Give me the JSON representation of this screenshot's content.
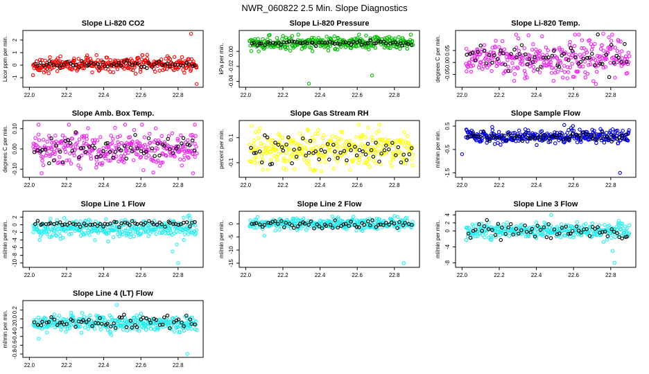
{
  "figure_title": "NWR_060822  2.5 Min. Slope Diagnostics",
  "chart_data": [
    {
      "type": "scatter",
      "title": "Slope Li-820 CO2",
      "ylabel": "Licor ppm per min.",
      "xlim": [
        21.98,
        22.92
      ],
      "ylim": [
        -1.6,
        2.6
      ],
      "x_ticks": [
        22.0,
        22.2,
        22.4,
        22.6,
        22.8
      ],
      "x_tick_labels": [
        "22.0",
        "22.2",
        "22.4",
        "22.6",
        "22.8"
      ],
      "y_ticks": [
        -1,
        0,
        1,
        2
      ],
      "y_tick_labels": [
        "-1",
        "0",
        "1",
        "2"
      ],
      "color": "#ff0000",
      "series_center": 0.05,
      "series_spread": 0.28,
      "black_center": 0.05,
      "black_spread": 0.15,
      "outliers": [
        {
          "x": 22.87,
          "y": 2.5
        },
        {
          "x": 22.9,
          "y": -1.5
        },
        {
          "x": 22.02,
          "y": -0.8
        }
      ]
    },
    {
      "type": "scatter",
      "title": "Slope Li-820 Pressure",
      "ylabel": "kPa per min.",
      "xlim": [
        21.98,
        22.92
      ],
      "ylim": [
        -0.045,
        0.025
      ],
      "x_ticks": [
        22.0,
        22.2,
        22.4,
        22.6,
        22.8
      ],
      "x_tick_labels": [
        "22.0",
        "22.2",
        "22.4",
        "22.6",
        "22.8"
      ],
      "y_ticks": [
        -0.04,
        -0.02,
        0.0
      ],
      "y_tick_labels": [
        "-0.04",
        "-0.02",
        "0.00"
      ],
      "color": "#00bb00",
      "series_center": 0.011,
      "series_spread": 0.004,
      "black_center": 0.011,
      "black_spread": 0.0015,
      "outliers": [
        {
          "x": 22.34,
          "y": -0.043
        },
        {
          "x": 22.68,
          "y": -0.032
        },
        {
          "x": 22.07,
          "y": 0.0
        }
      ]
    },
    {
      "type": "scatter",
      "title": "Slope Li-820 Temp.",
      "ylabel": "degrees C per min.",
      "xlim": [
        21.98,
        22.92
      ],
      "ylim": [
        -0.095,
        0.125
      ],
      "x_ticks": [
        22.0,
        22.2,
        22.4,
        22.6,
        22.8
      ],
      "x_tick_labels": [
        "22.0",
        "22.2",
        "22.4",
        "22.6",
        "22.8"
      ],
      "y_ticks": [
        -0.05,
        0.0,
        0.05
      ],
      "y_tick_labels": [
        "-0.05",
        "0.00",
        "0.05"
      ],
      "color": "#ee22ee",
      "series_center": 0.02,
      "series_spread": 0.038,
      "black_center": 0.02,
      "black_spread": 0.028,
      "outliers": [
        {
          "x": 22.76,
          "y": 0.12
        },
        {
          "x": 22.72,
          "y": -0.09
        }
      ]
    },
    {
      "type": "scatter",
      "title": "Slope Amb. Box Temp.",
      "ylabel": "degrees C per min.",
      "xlim": [
        21.98,
        22.92
      ],
      "ylim": [
        -0.13,
        0.13
      ],
      "x_ticks": [
        22.0,
        22.2,
        22.4,
        22.6,
        22.8
      ],
      "x_tick_labels": [
        "22.0",
        "22.2",
        "22.4",
        "22.6",
        "22.8"
      ],
      "y_ticks": [
        -0.1,
        0.0,
        0.1
      ],
      "y_tick_labels": [
        "-0.10",
        "0.00",
        "0.10"
      ],
      "color": "#ee22ee",
      "series_center": 0.0,
      "series_spread": 0.045,
      "black_center": 0.0,
      "black_spread": 0.04,
      "outliers": [
        {
          "x": 22.89,
          "y": 0.12
        },
        {
          "x": 22.88,
          "y": -0.12
        }
      ]
    },
    {
      "type": "scatter",
      "title": "Slope Gas Stream RH",
      "ylabel": "percent per min.",
      "xlim": [
        21.98,
        22.92
      ],
      "ylim": [
        -0.2,
        0.22
      ],
      "x_ticks": [
        22.0,
        22.2,
        22.4,
        22.6,
        22.8
      ],
      "x_tick_labels": [
        "22.0",
        "22.2",
        "22.4",
        "22.6",
        "22.8"
      ],
      "y_ticks": [
        -0.1,
        0.1
      ],
      "y_tick_labels": [
        "-0.1",
        "0.1"
      ],
      "color": "#ffff00",
      "series_center": 0.0,
      "series_spread": 0.07,
      "black_center": 0.0,
      "black_spread": 0.06,
      "outliers": [
        {
          "x": 22.66,
          "y": 0.18
        }
      ]
    },
    {
      "type": "scatter",
      "title": "Slope Sample Flow",
      "ylabel": "ml/min per min.",
      "xlim": [
        21.98,
        22.92
      ],
      "ylim": [
        -1.6,
        0.65
      ],
      "x_ticks": [
        22.0,
        22.2,
        22.4,
        22.6,
        22.8
      ],
      "x_tick_labels": [
        "22.0",
        "22.2",
        "22.4",
        "22.6",
        "22.8"
      ],
      "y_ticks": [
        -1.5,
        -0.5,
        0.5
      ],
      "y_tick_labels": [
        "-1.5",
        "-0.5",
        "0.5"
      ],
      "color": "#0000dd",
      "series_center": 0.05,
      "series_spread": 0.14,
      "black_center": 0.05,
      "black_spread": 0.08,
      "outliers": [
        {
          "x": 22.85,
          "y": -1.5
        },
        {
          "x": 22.0,
          "y": -0.7
        },
        {
          "x": 22.55,
          "y": 0.55
        }
      ]
    },
    {
      "type": "scatter",
      "title": "Slope Line 1 Flow",
      "ylabel": "ml/min per min.",
      "xlim": [
        21.98,
        22.92
      ],
      "ylim": [
        -10.6,
        3.0
      ],
      "x_ticks": [
        22.0,
        22.2,
        22.4,
        22.6,
        22.8
      ],
      "x_tick_labels": [
        "22.0",
        "22.2",
        "22.4",
        "22.6",
        "22.8"
      ],
      "y_ticks": [
        -10,
        -8,
        -6,
        -4,
        -2,
        0,
        2
      ],
      "y_tick_labels": [
        "-10",
        "-8",
        "-6",
        "-4",
        "-2",
        "0",
        "2"
      ],
      "color": "#22eeee",
      "series_center": -1.0,
      "series_spread": 1.2,
      "black_center": 0.2,
      "black_spread": 0.35,
      "outliers": [
        {
          "x": 22.8,
          "y": -10.0
        },
        {
          "x": 22.77,
          "y": -7.0
        },
        {
          "x": 22.86,
          "y": 2.5
        }
      ]
    },
    {
      "type": "scatter",
      "title": "Slope Line 2 Flow",
      "ylabel": "ml/min per min.",
      "xlim": [
        21.98,
        22.92
      ],
      "ylim": [
        -15.8,
        4.0
      ],
      "x_ticks": [
        22.0,
        22.2,
        22.4,
        22.6,
        22.8
      ],
      "x_tick_labels": [
        "22.0",
        "22.2",
        "22.4",
        "22.6",
        "22.8"
      ],
      "y_ticks": [
        -15,
        -10,
        -5,
        0
      ],
      "y_tick_labels": [
        "-15",
        "-10",
        "-5",
        "0"
      ],
      "color": "#22eeee",
      "series_center": 0.0,
      "series_spread": 1.0,
      "black_center": -0.3,
      "black_spread": 0.8,
      "outliers": [
        {
          "x": 22.85,
          "y": -15.0
        },
        {
          "x": 22.1,
          "y": -4.5
        },
        {
          "x": 22.8,
          "y": 3.0
        }
      ]
    },
    {
      "type": "scatter",
      "title": "Slope Line 3 Flow",
      "ylabel": "ml/min per min.",
      "xlim": [
        21.98,
        22.92
      ],
      "ylim": [
        -8.6,
        4.4
      ],
      "x_ticks": [
        22.0,
        22.2,
        22.4,
        22.6,
        22.8
      ],
      "x_tick_labels": [
        "22.0",
        "22.2",
        "22.4",
        "22.6",
        "22.8"
      ],
      "y_ticks": [
        -8,
        -4,
        0,
        2,
        4
      ],
      "y_tick_labels": [
        "-8",
        "-4",
        "0",
        "2",
        "4"
      ],
      "color": "#22eeee",
      "series_center": 0.0,
      "series_spread": 0.9,
      "black_center": 0.0,
      "black_spread": 1.0,
      "outliers": [
        {
          "x": 22.82,
          "y": -8.0
        },
        {
          "x": 22.48,
          "y": 4.0
        },
        {
          "x": 22.81,
          "y": -5.0
        }
      ]
    },
    {
      "type": "scatter",
      "title": "Slope Line 4 (LT) Flow",
      "ylabel": "ml/min per min.",
      "xlim": [
        21.98,
        22.92
      ],
      "ylim": [
        -0.83,
        0.37
      ],
      "x_ticks": [
        22.0,
        22.2,
        22.4,
        22.6,
        22.8
      ],
      "x_tick_labels": [
        "22.0",
        "22.2",
        "22.4",
        "22.6",
        "22.8"
      ],
      "y_ticks": [
        -0.8,
        -0.6,
        -0.4,
        -0.2,
        0.0,
        0.2
      ],
      "y_tick_labels": [
        "-0.8",
        "-0.6",
        "-0.4",
        "-0.2",
        "0.0",
        "0.2"
      ],
      "color": "#22eeee",
      "series_center": -0.1,
      "series_spread": 0.09,
      "black_center": -0.08,
      "black_spread": 0.08,
      "outliers": [
        {
          "x": 22.85,
          "y": -0.8
        },
        {
          "x": 22.05,
          "y": -0.45
        },
        {
          "x": 22.47,
          "y": 0.32
        }
      ]
    }
  ]
}
